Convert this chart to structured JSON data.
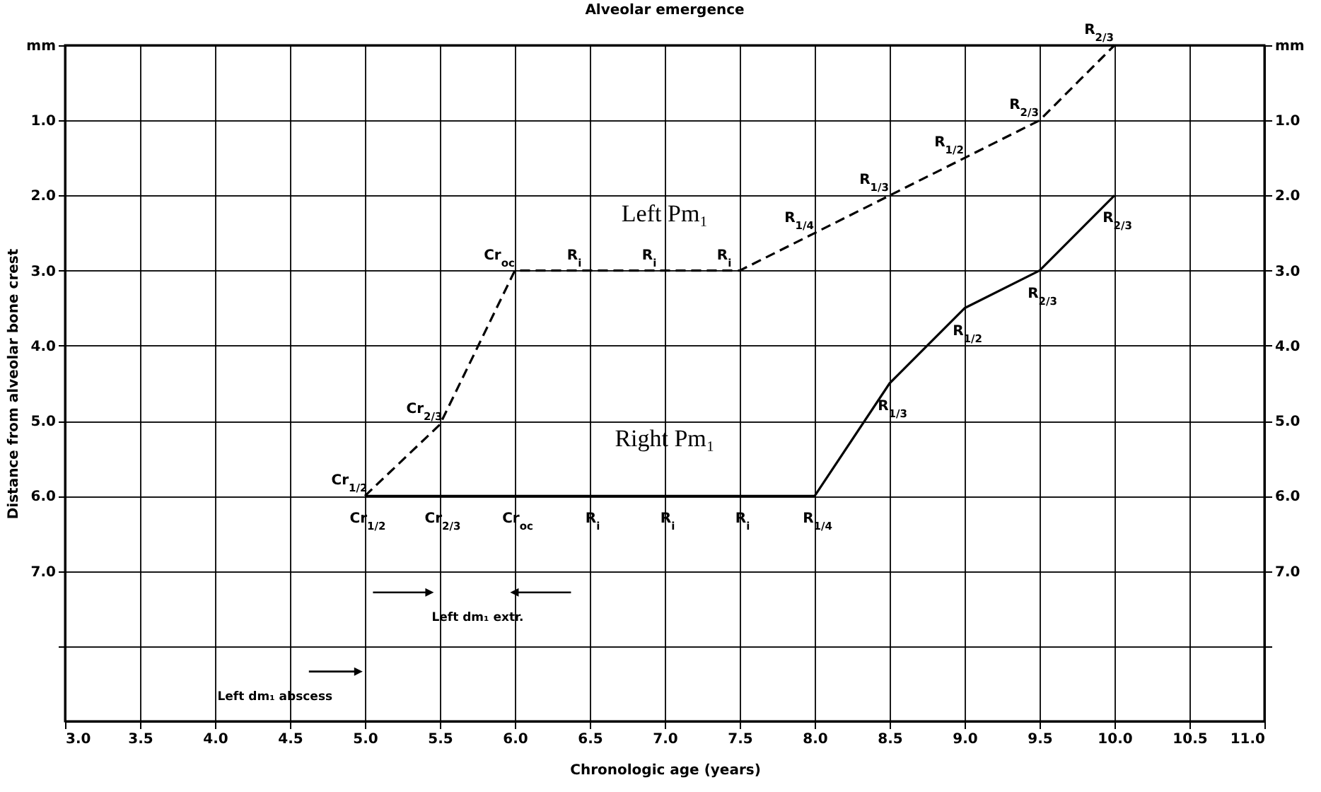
{
  "chart_data": {
    "type": "line",
    "title": "Alveolar emergence",
    "xlabel": "Chronologic age (years)",
    "ylabel": "Distance from alveolar bone crest",
    "xlim": [
      3,
      11
    ],
    "xticks": [
      {
        "value": 3,
        "label": "3.0"
      },
      {
        "value": 3.5,
        "label": "3.5"
      },
      {
        "value": 4,
        "label": "4.0"
      },
      {
        "value": 4.5,
        "label": "4.5"
      },
      {
        "value": 5,
        "label": "5.0"
      },
      {
        "value": 5.5,
        "label": "5.5"
      },
      {
        "value": 6,
        "label": "6.0"
      },
      {
        "value": 6.5,
        "label": "6.5"
      },
      {
        "value": 7,
        "label": "7.0"
      },
      {
        "value": 7.5,
        "label": "7.5"
      },
      {
        "value": 8,
        "label": "8.0"
      },
      {
        "value": 8.5,
        "label": "8.5"
      },
      {
        "value": 9,
        "label": "9.0"
      },
      {
        "value": 9.5,
        "label": "9.5"
      },
      {
        "value": 10,
        "label": "10.0"
      },
      {
        "value": 10.5,
        "label": "10.5"
      },
      {
        "value": 11,
        "label": "11.0"
      }
    ],
    "ylim": [
      9,
      0
    ],
    "yticks": [
      {
        "value": 0,
        "label": "mm"
      },
      {
        "value": 1,
        "label": "1.0"
      },
      {
        "value": 2,
        "label": "2.0"
      },
      {
        "value": 3,
        "label": "3.0"
      },
      {
        "value": 4,
        "label": "4.0"
      },
      {
        "value": 5,
        "label": "5.0"
      },
      {
        "value": 6,
        "label": "6.0"
      },
      {
        "value": 7,
        "label": "7.0"
      },
      {
        "value": 8,
        "label": null
      }
    ],
    "y2lim": [
      9,
      0
    ],
    "y2ticks": [
      {
        "value": 0,
        "label": "mm"
      },
      {
        "value": 1,
        "label": "1.0"
      },
      {
        "value": 2,
        "label": "2.0"
      },
      {
        "value": 3,
        "label": "3.0"
      },
      {
        "value": 4,
        "label": "4.0"
      },
      {
        "value": 5,
        "label": "5.0"
      },
      {
        "value": 6,
        "label": "6.0"
      },
      {
        "value": 7,
        "label": "7.0"
      },
      {
        "value": 8,
        "label": null
      }
    ],
    "x": [
      5,
      5.5,
      6,
      6.5,
      7,
      7.5,
      8,
      8.5,
      9,
      9.5,
      10
    ],
    "series": [
      {
        "name": "Left Pm₁",
        "color": "#000000",
        "line_style": "dashed",
        "values": [
          6,
          5.05,
          3,
          3,
          3,
          3,
          2.5,
          2,
          1.5,
          1,
          0
        ]
      },
      {
        "name": "Right Pm₁",
        "color": "#000000",
        "line_style": "solid",
        "values": [
          6,
          6,
          6,
          6,
          6,
          6,
          6,
          4.5,
          3.5,
          3,
          2
        ]
      }
    ],
    "grid": true,
    "marker": "none",
    "legend": false,
    "annotations": [
      {
        "text": "Cr$_{1/2}$",
        "x": 5,
        "y": 6
      },
      {
        "text": "Cr$_{2/3}$",
        "x": 5.5,
        "y": 5.05
      },
      {
        "text": "Cr$_{oc}$",
        "x": 6,
        "y": 3
      },
      {
        "text": "R$_{i}$",
        "x": 6.5,
        "y": 3
      },
      {
        "text": "R$_{i}$",
        "x": 7,
        "y": 3
      },
      {
        "text": "R$_{i}$",
        "x": 7.5,
        "y": 3
      },
      {
        "text": "R$_{1/4}$",
        "x": 8,
        "y": 2.5
      },
      {
        "text": "R$_{1/3}$",
        "x": 8.5,
        "y": 2
      },
      {
        "text": "R$_{1/2}$",
        "x": 9,
        "y": 1.5
      },
      {
        "text": "R$_{2/3}$",
        "x": 9.5,
        "y": 1
      },
      {
        "text": "R$_{2/3}$",
        "x": 10,
        "y": 0
      },
      {
        "text": "Cr$_{1/2}$",
        "x": 5,
        "y": 6
      },
      {
        "text": "Cr$_{2/3}$",
        "x": 5.5,
        "y": 6
      },
      {
        "text": "Cr$_{oc}$",
        "x": 6,
        "y": 6
      },
      {
        "text": "R$_{i}$",
        "x": 6.5,
        "y": 6
      },
      {
        "text": "R$_{i}$",
        "x": 7,
        "y": 6
      },
      {
        "text": "R$_{i}$",
        "x": 7.5,
        "y": 6
      },
      {
        "text": "R$_{1/4}$",
        "x": 8,
        "y": 6
      },
      {
        "text": "R$_{1/3}$",
        "x": 8.5,
        "y": 4.5
      },
      {
        "text": "R$_{1/2}$",
        "x": 9,
        "y": 3.5
      },
      {
        "text": "R$_{2/3}$",
        "x": 9.5,
        "y": 3
      },
      {
        "text": "R$_{2/3}$",
        "x": 10,
        "y": 2
      },
      "Left dm₁ extr.",
      "Left dm₁ abscess"
    ]
  }
}
